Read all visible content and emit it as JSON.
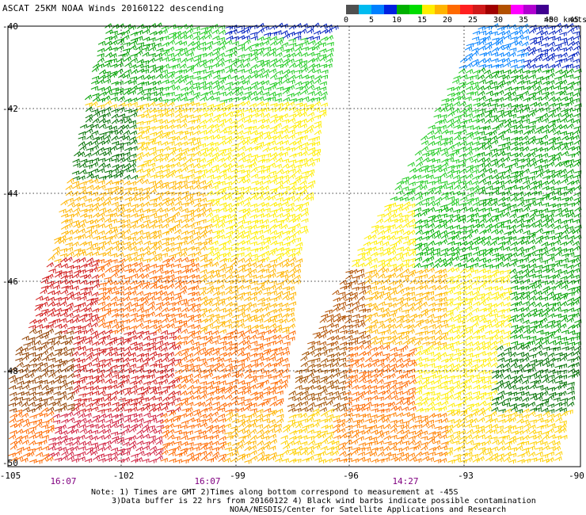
{
  "title": "ASCAT 25KM NOAA Winds 20160122 descending",
  "colorbar": {
    "labels": [
      "0",
      "5",
      "10",
      "15",
      "20",
      "25",
      "30",
      "35",
      "40",
      "45"
    ],
    "last_label": ">50 knots",
    "colors": [
      "#505050",
      "#00bbf0",
      "#0080ff",
      "#0020e0",
      "#00b000",
      "#00dd00",
      "#ffee00",
      "#ffb400",
      "#ff6a00",
      "#ff2020",
      "#d01a1a",
      "#a00000",
      "#b25000",
      "#ff00ff",
      "#b000d0",
      "#400090"
    ]
  },
  "lat_labels": [
    "-40",
    "-42",
    "-44",
    "-46",
    "-48",
    "-50"
  ],
  "lon_labels": [
    "-105",
    "-102",
    "-99",
    "-96",
    "-93",
    "-90"
  ],
  "times": [
    "16:07",
    "16:07",
    "14:27"
  ],
  "notes": {
    "line1": "Note: 1) Times are GMT 2)Times along bottom correspond to measurement at -45S",
    "line2": "3)Data buffer is 22 hrs from 20160122 4) Black wind barbs indicate possible contamination",
    "line3": "NOAA/NESDIS/Center for Satellite Applications and Research"
  },
  "map": {
    "lat_range": [
      -50,
      -40
    ],
    "lon_range": [
      -105,
      -90
    ],
    "grid": true,
    "swaths": [
      {
        "name": "west-swath",
        "time": "16:07"
      },
      {
        "name": "east-swath",
        "time": "14:27"
      }
    ]
  }
}
